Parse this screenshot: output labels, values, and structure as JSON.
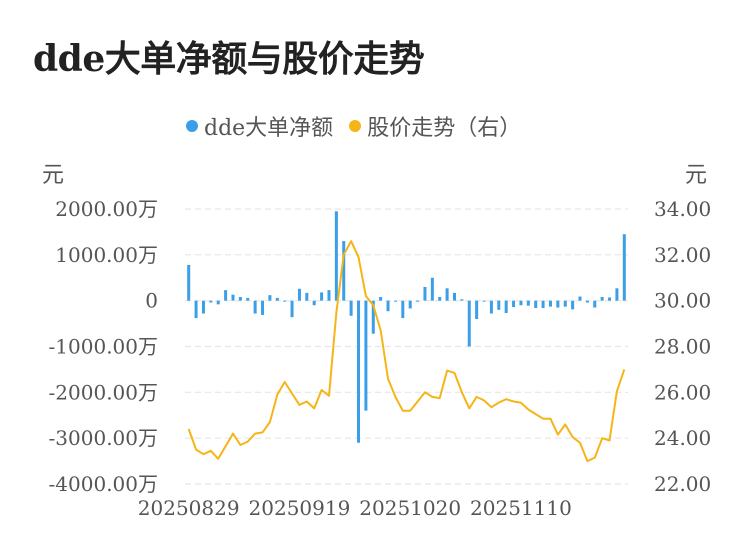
{
  "colors": {
    "bar": "#3a9fe8",
    "line": "#f5b517",
    "grid": "#e6e6e6"
  },
  "chart_data": {
    "type": "bar",
    "title": "dde大单净额与股价走势",
    "legend": [
      "dde大单净额",
      "股价走势（右）"
    ],
    "left_unit": "元",
    "right_unit": "元",
    "left_ticks": [
      "2000.00万",
      "1000.00万",
      "0",
      "-1000.00万",
      "-2000.00万",
      "-3000.00万",
      "-4000.00万"
    ],
    "right_ticks": [
      "34.00",
      "32.00",
      "30.00",
      "28.00",
      "26.00",
      "24.00",
      "22.00"
    ],
    "x_ticks": [
      {
        "index": 0,
        "label": "20250829"
      },
      {
        "index": 15,
        "label": "20250919"
      },
      {
        "index": 30,
        "label": "20251020"
      },
      {
        "index": 45,
        "label": "20251110"
      }
    ],
    "ylim_left": [
      -4000,
      2000
    ],
    "ylim_right": [
      22,
      34
    ],
    "series": [
      {
        "name": "dde大单净额",
        "type": "bar",
        "unit": "万",
        "values": [
          780,
          -380,
          -280,
          -40,
          -80,
          230,
          130,
          80,
          60,
          -280,
          -310,
          120,
          60,
          -20,
          -360,
          260,
          170,
          -100,
          180,
          230,
          1950,
          1300,
          -330,
          -3100,
          -2400,
          -720,
          80,
          -230,
          -10,
          -380,
          -170,
          -20,
          300,
          500,
          80,
          270,
          170,
          30,
          -1000,
          -400,
          -20,
          -280,
          -200,
          -270,
          -140,
          -100,
          -110,
          -160,
          -160,
          -130,
          -150,
          -130,
          -190,
          90,
          -40,
          -150,
          80,
          70,
          270,
          1450
        ]
      },
      {
        "name": "股价走势（右）",
        "type": "line",
        "values": [
          24.4,
          23.5,
          23.3,
          23.45,
          23.1,
          23.65,
          24.2,
          23.7,
          23.85,
          24.2,
          24.25,
          24.7,
          25.9,
          26.45,
          25.95,
          25.45,
          25.6,
          25.3,
          26.1,
          25.85,
          29.5,
          32.0,
          32.6,
          31.9,
          30.2,
          29.8,
          28.7,
          26.6,
          25.8,
          25.2,
          25.2,
          25.6,
          26.0,
          25.8,
          25.75,
          26.95,
          26.85,
          26.0,
          25.3,
          25.8,
          25.65,
          25.35,
          25.55,
          25.7,
          25.6,
          25.55,
          25.25,
          25.05,
          24.85,
          24.85,
          24.15,
          24.6,
          24.05,
          23.8,
          23.0,
          23.15,
          24.0,
          23.9,
          26.05,
          27.0
        ]
      }
    ]
  }
}
